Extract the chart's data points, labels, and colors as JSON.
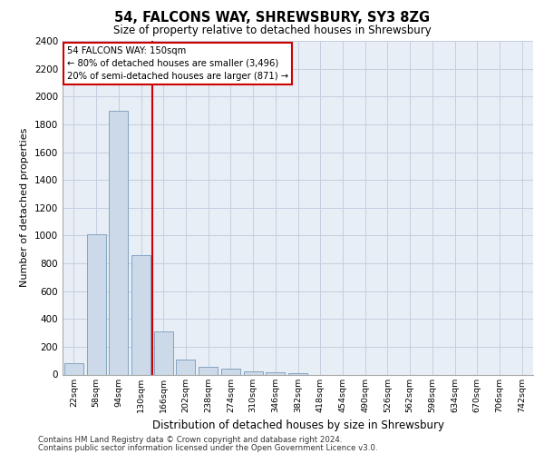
{
  "title": "54, FALCONS WAY, SHREWSBURY, SY3 8ZG",
  "subtitle": "Size of property relative to detached houses in Shrewsbury",
  "xlabel": "Distribution of detached houses by size in Shrewsbury",
  "ylabel": "Number of detached properties",
  "footnote1": "Contains HM Land Registry data © Crown copyright and database right 2024.",
  "footnote2": "Contains public sector information licensed under the Open Government Licence v3.0.",
  "annotation_line1": "54 FALCONS WAY: 150sqm",
  "annotation_line2": "← 80% of detached houses are smaller (3,496)",
  "annotation_line3": "20% of semi-detached houses are larger (871) →",
  "bar_color": "#ccd9e8",
  "bar_edge_color": "#7799bb",
  "red_line_color": "#cc0000",
  "background_color": "#ffffff",
  "ax_background_color": "#e8eef5",
  "grid_color": "#c5cfe0",
  "categories": [
    "22sqm",
    "58sqm",
    "94sqm",
    "130sqm",
    "166sqm",
    "202sqm",
    "238sqm",
    "274sqm",
    "310sqm",
    "346sqm",
    "382sqm",
    "418sqm",
    "454sqm",
    "490sqm",
    "526sqm",
    "562sqm",
    "598sqm",
    "634sqm",
    "670sqm",
    "706sqm",
    "742sqm"
  ],
  "values": [
    80,
    1010,
    1900,
    860,
    310,
    110,
    55,
    40,
    25,
    15,
    8,
    0,
    0,
    0,
    0,
    0,
    0,
    0,
    0,
    0,
    0
  ],
  "ylim": [
    0,
    2400
  ],
  "yticks": [
    0,
    200,
    400,
    600,
    800,
    1000,
    1200,
    1400,
    1600,
    1800,
    2000,
    2200,
    2400
  ],
  "red_line_xindex": 3.5
}
